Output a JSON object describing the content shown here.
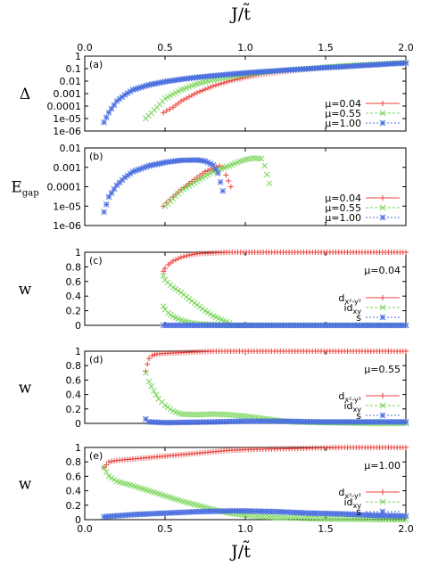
{
  "figure": {
    "x_axis_label_top": "J/t̃",
    "x_axis_label_bottom": "J/t̃",
    "x_ticks": [
      "0.0",
      "0.5",
      "1.0",
      "1.5",
      "2.0"
    ]
  },
  "chart_data": [
    {
      "panel": "(a)",
      "type": "scatter",
      "ylabel": "Δ",
      "xlim": [
        0,
        2
      ],
      "ylim": [
        1e-06,
        1
      ],
      "yscale": "log",
      "y_ticks": [
        "1",
        "0.1",
        "0.01",
        "0.001",
        "0.0001",
        "1e-05",
        "1e-06"
      ],
      "legend_position": "bottom-right",
      "series": [
        {
          "name": "μ=0.04",
          "color": "#e8413c",
          "marker": "plus",
          "range": [
            0.49,
            2.0
          ],
          "points": [
            [
              0.49,
              3e-05
            ],
            [
              0.55,
              8e-05
            ],
            [
              0.6,
              0.00025
            ],
            [
              0.7,
              0.0012
            ],
            [
              0.8,
              0.004
            ],
            [
              0.9,
              0.01
            ],
            [
              1.0,
              0.02
            ],
            [
              1.1,
              0.035
            ],
            [
              1.2,
              0.05
            ],
            [
              1.3,
              0.07
            ],
            [
              1.4,
              0.09
            ],
            [
              1.5,
              0.12
            ],
            [
              1.6,
              0.15
            ],
            [
              1.7,
              0.18
            ],
            [
              1.8,
              0.22
            ],
            [
              1.9,
              0.25
            ],
            [
              2.0,
              0.3
            ]
          ]
        },
        {
          "name": "μ=0.55",
          "color": "#7cd65c",
          "marker": "cross",
          "range": [
            0.38,
            2.0
          ],
          "points": [
            [
              0.38,
              1e-05
            ],
            [
              0.45,
              8e-05
            ],
            [
              0.5,
              0.0004
            ],
            [
              0.6,
              0.002
            ],
            [
              0.7,
              0.006
            ],
            [
              0.8,
              0.013
            ],
            [
              0.9,
              0.022
            ],
            [
              1.0,
              0.035
            ],
            [
              1.1,
              0.05
            ],
            [
              1.2,
              0.066
            ],
            [
              1.3,
              0.085
            ],
            [
              1.4,
              0.1
            ],
            [
              1.5,
              0.13
            ],
            [
              1.6,
              0.16
            ],
            [
              1.7,
              0.19
            ],
            [
              1.8,
              0.22
            ],
            [
              1.9,
              0.26
            ],
            [
              2.0,
              0.3
            ]
          ]
        },
        {
          "name": "μ=1.00",
          "color": "#4a6ee0",
          "marker": "star",
          "range": [
            0.12,
            2.0
          ],
          "points": [
            [
              0.12,
              5e-06
            ],
            [
              0.15,
              3e-05
            ],
            [
              0.2,
              0.00025
            ],
            [
              0.25,
              0.0008
            ],
            [
              0.3,
              0.002
            ],
            [
              0.4,
              0.005
            ],
            [
              0.5,
              0.009
            ],
            [
              0.6,
              0.014
            ],
            [
              0.7,
              0.02
            ],
            [
              0.8,
              0.027
            ],
            [
              0.9,
              0.035
            ],
            [
              1.0,
              0.045
            ],
            [
              1.1,
              0.056
            ],
            [
              1.2,
              0.068
            ],
            [
              1.3,
              0.082
            ],
            [
              1.4,
              0.1
            ],
            [
              1.5,
              0.12
            ],
            [
              1.6,
              0.14
            ],
            [
              1.7,
              0.17
            ],
            [
              1.8,
              0.2
            ],
            [
              1.9,
              0.24
            ],
            [
              2.0,
              0.28
            ]
          ]
        }
      ]
    },
    {
      "panel": "(b)",
      "type": "scatter",
      "ylabel": "E",
      "ylabel_sub": "gap",
      "xlim": [
        0,
        2
      ],
      "ylim": [
        1e-06,
        0.01
      ],
      "yscale": "log",
      "y_ticks": [
        "0.01",
        "0.001",
        "0.0001",
        "1e-05",
        "1e-06"
      ],
      "legend_position": "bottom-right",
      "series": [
        {
          "name": "μ=0.04",
          "color": "#e8413c",
          "marker": "plus",
          "range": [
            0.49,
            0.91
          ],
          "points": [
            [
              0.49,
              1e-05
            ],
            [
              0.55,
              3e-05
            ],
            [
              0.6,
              7e-05
            ],
            [
              0.65,
              0.00015
            ],
            [
              0.7,
              0.0003
            ],
            [
              0.75,
              0.0006
            ],
            [
              0.8,
              0.0009
            ],
            [
              0.84,
              0.0012
            ],
            [
              0.86,
              0.001
            ],
            [
              0.88,
              0.0004
            ],
            [
              0.91,
              0.0001
            ]
          ]
        },
        {
          "name": "μ=0.55",
          "color": "#7cd65c",
          "marker": "cross",
          "range": [
            0.5,
            1.15
          ],
          "points": [
            [
              0.5,
              1e-05
            ],
            [
              0.6,
              6e-05
            ],
            [
              0.7,
              0.0002
            ],
            [
              0.8,
              0.0006
            ],
            [
              0.9,
              0.0012
            ],
            [
              0.95,
              0.0018
            ],
            [
              1.0,
              0.0025
            ],
            [
              1.05,
              0.003
            ],
            [
              1.1,
              0.0028
            ],
            [
              1.12,
              0.0012
            ],
            [
              1.15,
              0.00015
            ]
          ]
        },
        {
          "name": "μ=1.00",
          "color": "#4a6ee0",
          "marker": "star",
          "range": [
            0.12,
            0.86
          ],
          "points": [
            [
              0.12,
              5e-06
            ],
            [
              0.15,
              3e-05
            ],
            [
              0.2,
              0.00012
            ],
            [
              0.25,
              0.0003
            ],
            [
              0.3,
              0.0006
            ],
            [
              0.4,
              0.0012
            ],
            [
              0.5,
              0.0018
            ],
            [
              0.6,
              0.0023
            ],
            [
              0.7,
              0.0024
            ],
            [
              0.75,
              0.0021
            ],
            [
              0.8,
              0.0013
            ],
            [
              0.83,
              0.0005
            ],
            [
              0.86,
              6e-05
            ]
          ]
        }
      ]
    },
    {
      "panel": "(c)",
      "type": "scatter",
      "ylabel": "w",
      "annotation": "μ=0.04",
      "xlim": [
        0,
        2
      ],
      "ylim": [
        0,
        1
      ],
      "y_ticks": [
        "1",
        "0.8",
        "0.6",
        "0.4",
        "0.2",
        "0"
      ],
      "legend_position": "right",
      "series": [
        {
          "name": "d_{x²-y²}",
          "color": "#e8413c",
          "marker": "plus",
          "points": [
            [
              0.49,
              0.74
            ],
            [
              0.5,
              0.78
            ],
            [
              0.52,
              0.83
            ],
            [
              0.55,
              0.88
            ],
            [
              0.6,
              0.93
            ],
            [
              0.65,
              0.96
            ],
            [
              0.7,
              0.98
            ],
            [
              0.8,
              0.99
            ],
            [
              0.9,
              1.0
            ],
            [
              1.2,
              1.0
            ],
            [
              1.6,
              1.0
            ],
            [
              2.0,
              1.0
            ]
          ]
        },
        {
          "name": "id_{xy}",
          "color": "#7cd65c",
          "marker": "cross",
          "points": [
            [
              0.49,
              0.26
            ],
            [
              0.5,
              0.22
            ],
            [
              0.52,
              0.17
            ],
            [
              0.55,
              0.12
            ],
            [
              0.6,
              0.07
            ],
            [
              0.65,
              0.04
            ],
            [
              0.7,
              0.02
            ],
            [
              0.8,
              0.01
            ],
            [
              0.9,
              0.0
            ],
            [
              1.2,
              0.0
            ],
            [
              1.6,
              0.0
            ],
            [
              2.0,
              0.0
            ]
          ],
          "points_upper": [
            [
              0.49,
              0.68
            ],
            [
              0.5,
              0.62
            ],
            [
              0.55,
              0.52
            ],
            [
              0.6,
              0.45
            ],
            [
              0.65,
              0.36
            ],
            [
              0.7,
              0.28
            ],
            [
              0.75,
              0.2
            ],
            [
              0.8,
              0.13
            ],
            [
              0.85,
              0.08
            ],
            [
              0.9,
              0.03
            ]
          ]
        },
        {
          "name": "s",
          "color": "#4a6ee0",
          "marker": "star",
          "points": [
            [
              0.49,
              0.0
            ],
            [
              0.8,
              0.0
            ],
            [
              1.2,
              0.0
            ],
            [
              1.6,
              0.0
            ],
            [
              2.0,
              0.0
            ]
          ]
        }
      ]
    },
    {
      "panel": "(d)",
      "type": "scatter",
      "ylabel": "w",
      "annotation": "μ=0.55",
      "xlim": [
        0,
        2
      ],
      "ylim": [
        0,
        1
      ],
      "y_ticks": [
        "1",
        "0.8",
        "0.6",
        "0.4",
        "0.2",
        "0"
      ],
      "legend_position": "right",
      "series": [
        {
          "name": "d_{x²-y²}",
          "color": "#e8413c",
          "marker": "plus",
          "points": [
            [
              0.38,
              0.72
            ],
            [
              0.39,
              0.82
            ],
            [
              0.4,
              0.9
            ],
            [
              0.42,
              0.94
            ],
            [
              0.45,
              0.96
            ],
            [
              0.5,
              0.97
            ],
            [
              0.6,
              0.98
            ],
            [
              0.7,
              0.99
            ],
            [
              0.8,
              1.0
            ],
            [
              1.2,
              1.0
            ],
            [
              1.6,
              1.0
            ],
            [
              2.0,
              1.0
            ]
          ]
        },
        {
          "name": "id_{xy}",
          "color": "#7cd65c",
          "marker": "cross",
          "points": [
            [
              0.38,
              0.7
            ],
            [
              0.4,
              0.58
            ],
            [
              0.43,
              0.45
            ],
            [
              0.46,
              0.34
            ],
            [
              0.5,
              0.25
            ],
            [
              0.55,
              0.17
            ],
            [
              0.6,
              0.13
            ],
            [
              0.7,
              0.12
            ],
            [
              0.8,
              0.13
            ],
            [
              0.9,
              0.12
            ],
            [
              1.0,
              0.1
            ],
            [
              1.1,
              0.07
            ],
            [
              1.2,
              0.04
            ],
            [
              1.3,
              0.02
            ],
            [
              1.5,
              0.01
            ],
            [
              1.8,
              0.0
            ],
            [
              2.0,
              0.0
            ]
          ]
        },
        {
          "name": "s",
          "color": "#4a6ee0",
          "marker": "star",
          "points": [
            [
              0.38,
              0.06
            ],
            [
              0.4,
              0.02
            ],
            [
              0.5,
              0.01
            ],
            [
              0.8,
              0.02
            ],
            [
              1.0,
              0.03
            ],
            [
              1.2,
              0.03
            ],
            [
              1.5,
              0.02
            ],
            [
              1.8,
              0.02
            ],
            [
              2.0,
              0.02
            ]
          ]
        }
      ]
    },
    {
      "panel": "(e)",
      "type": "scatter",
      "ylabel": "w",
      "annotation": "μ=1.00",
      "xlim": [
        0,
        2
      ],
      "ylim": [
        0,
        1
      ],
      "y_ticks": [
        "1",
        "0.8",
        "0.6",
        "0.4",
        "0.2",
        "0"
      ],
      "legend_position": "right",
      "series": [
        {
          "name": "d_{x²-y²}",
          "color": "#e8413c",
          "marker": "plus",
          "points": [
            [
              0.12,
              0.72
            ],
            [
              0.15,
              0.8
            ],
            [
              0.2,
              0.82
            ],
            [
              0.3,
              0.84
            ],
            [
              0.4,
              0.86
            ],
            [
              0.5,
              0.88
            ],
            [
              0.6,
              0.9
            ],
            [
              0.7,
              0.92
            ],
            [
              0.8,
              0.94
            ],
            [
              0.9,
              0.96
            ],
            [
              1.0,
              0.97
            ],
            [
              1.2,
              0.98
            ],
            [
              1.4,
              0.99
            ],
            [
              1.6,
              1.0
            ],
            [
              2.0,
              1.0
            ]
          ]
        },
        {
          "name": "id_{xy}",
          "color": "#7cd65c",
          "marker": "cross",
          "points": [
            [
              0.12,
              0.72
            ],
            [
              0.15,
              0.6
            ],
            [
              0.2,
              0.53
            ],
            [
              0.3,
              0.47
            ],
            [
              0.4,
              0.4
            ],
            [
              0.5,
              0.33
            ],
            [
              0.6,
              0.26
            ],
            [
              0.7,
              0.2
            ],
            [
              0.8,
              0.14
            ],
            [
              0.9,
              0.09
            ],
            [
              1.0,
              0.06
            ],
            [
              1.2,
              0.03
            ],
            [
              1.5,
              0.01
            ],
            [
              2.0,
              0.0
            ]
          ]
        },
        {
          "name": "s",
          "color": "#4a6ee0",
          "marker": "star",
          "points": [
            [
              0.12,
              0.04
            ],
            [
              0.3,
              0.07
            ],
            [
              0.5,
              0.09
            ],
            [
              0.7,
              0.11
            ],
            [
              0.9,
              0.12
            ],
            [
              1.0,
              0.12
            ],
            [
              1.2,
              0.11
            ],
            [
              1.4,
              0.09
            ],
            [
              1.6,
              0.08
            ],
            [
              1.8,
              0.06
            ],
            [
              2.0,
              0.05
            ]
          ]
        }
      ]
    }
  ]
}
